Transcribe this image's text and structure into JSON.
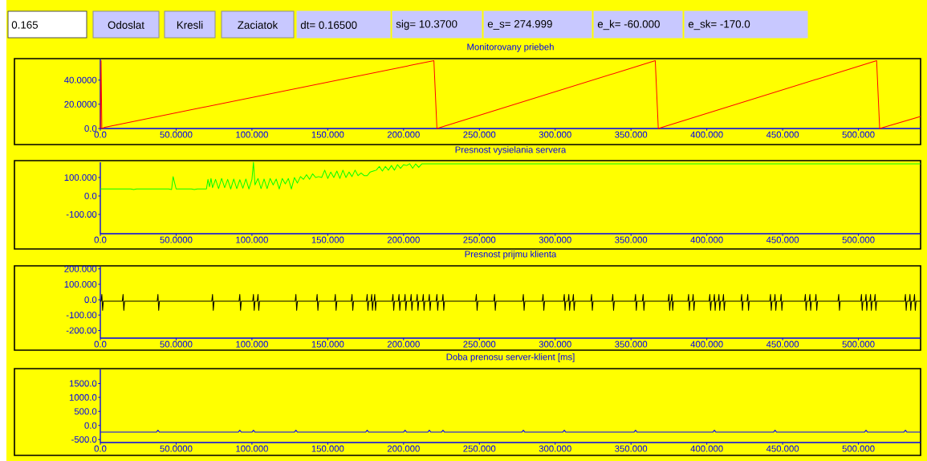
{
  "chart_data": [
    {
      "type": "other",
      "annotations": [
        "0.165",
        "Odoslat",
        "Kresli",
        "Zaciatok",
        "dt= 0.16500",
        "sig= 10.3700",
        "e_s= 274.999",
        "e_k= -60.000",
        "e_sk= -170.0"
      ]
    },
    {
      "type": "line",
      "title": "Monitorovany priebeh",
      "color": "#ff0000",
      "x": [
        0,
        0.5,
        1,
        3,
        220,
        222,
        366,
        368,
        512,
        514,
        541
      ],
      "values": [
        0,
        56,
        0,
        1,
        56,
        0,
        56,
        0,
        56,
        0,
        10
      ],
      "xlim": [
        0,
        541
      ],
      "ylim": [
        0,
        57
      ],
      "xticks": [
        {
          "value": 0,
          "label": "0.0"
        },
        {
          "value": 50,
          "label": "50.0000"
        },
        {
          "value": 100,
          "label": "100.000"
        },
        {
          "value": 150,
          "label": "150.000"
        },
        {
          "value": 200,
          "label": "200.000"
        },
        {
          "value": 250,
          "label": "250.000"
        },
        {
          "value": 300,
          "label": "300.000"
        },
        {
          "value": 350,
          "label": "350.000"
        },
        {
          "value": 400,
          "label": "400.000"
        },
        {
          "value": 450,
          "label": "450.000"
        },
        {
          "value": 500,
          "label": "500.000"
        }
      ],
      "yticks": [
        {
          "value": 0,
          "label": "0.0"
        },
        {
          "value": 20,
          "label": "20.0000"
        },
        {
          "value": 40,
          "label": "40.0000"
        }
      ]
    },
    {
      "type": "line",
      "title": "Presnost vysielania servera",
      "color": "#00ff00",
      "x": [
        0,
        20,
        22,
        24,
        45,
        47,
        48,
        50,
        60,
        62,
        64,
        70,
        71,
        72,
        73,
        74,
        76,
        78,
        80,
        82,
        84,
        86,
        88,
        90,
        92,
        94,
        96,
        98,
        100,
        101,
        102,
        104,
        106,
        108,
        110,
        112,
        114,
        116,
        118,
        120,
        122,
        124,
        126,
        128,
        130,
        132,
        134,
        136,
        138,
        140,
        142,
        144,
        146,
        148,
        150,
        152,
        154,
        156,
        158,
        160,
        162,
        164,
        166,
        168,
        170,
        172,
        174,
        176,
        178,
        180,
        182,
        184,
        186,
        188,
        190,
        192,
        194,
        196,
        198,
        200,
        202,
        204,
        206,
        208,
        210,
        212,
        214,
        541
      ],
      "values": [
        38,
        38,
        35,
        38,
        38,
        35,
        105,
        38,
        38,
        35,
        38,
        38,
        90,
        50,
        95,
        45,
        90,
        40,
        95,
        45,
        90,
        38,
        92,
        40,
        88,
        42,
        92,
        38,
        90,
        183,
        60,
        95,
        40,
        92,
        40,
        95,
        60,
        92,
        38,
        95,
        65,
        95,
        38,
        100,
        70,
        105,
        90,
        115,
        90,
        120,
        100,
        105,
        100,
        140,
        95,
        130,
        100,
        135,
        95,
        140,
        100,
        130,
        105,
        140,
        110,
        125,
        110,
        110,
        130,
        135,
        140,
        160,
        135,
        160,
        140,
        165,
        140,
        170,
        150,
        170,
        165,
        175,
        150,
        174,
        155,
        174,
        174,
        174
      ],
      "xlim": [
        0,
        541
      ],
      "ylim": [
        -205,
        183
      ],
      "xticks": [
        {
          "value": 0,
          "label": "0.0"
        },
        {
          "value": 50,
          "label": "50.0000"
        },
        {
          "value": 100,
          "label": "100.000"
        },
        {
          "value": 150,
          "label": "150.000"
        },
        {
          "value": 200,
          "label": "200.000"
        },
        {
          "value": 250,
          "label": "250.000"
        },
        {
          "value": 300,
          "label": "300.000"
        },
        {
          "value": 350,
          "label": "350.000"
        },
        {
          "value": 400,
          "label": "400.000"
        },
        {
          "value": 450,
          "label": "450.000"
        },
        {
          "value": 500,
          "label": "500.000"
        }
      ],
      "yticks": [
        {
          "value": -100,
          "label": "-100.00"
        },
        {
          "value": 0,
          "label": "0.0"
        },
        {
          "value": 100,
          "label": "100.000"
        }
      ]
    },
    {
      "type": "line",
      "title": "Presnost prijmu klienta",
      "color": "#000000",
      "x": [
        0,
        0.5,
        1,
        1.5,
        2,
        14.5,
        15,
        15.5,
        16,
        37.5,
        38,
        38.5,
        39,
        73.5,
        74,
        74.5,
        75,
        91.5,
        92,
        92.5,
        93,
        100.5,
        101,
        101.5,
        102,
        103.5,
        104,
        104.5,
        105,
        128.5,
        129,
        129.5,
        130,
        142.5,
        143,
        143.5,
        144,
        154.5,
        155,
        155.5,
        156,
        165.5,
        166,
        166.5,
        167,
        175.5,
        176,
        176.5,
        177,
        178.5,
        179,
        179.5,
        180,
        180.5,
        181,
        181.5,
        182,
        192.5,
        193,
        193.5,
        194,
        196.5,
        197,
        197.5,
        198,
        200.5,
        201,
        201.5,
        202,
        204.5,
        205,
        205.5,
        206,
        208.5,
        209,
        209.5,
        210,
        212.5,
        213,
        213.5,
        214,
        216.5,
        217,
        217.5,
        218,
        221.5,
        222,
        222.5,
        223,
        225.5,
        226,
        226.5,
        227,
        247.5,
        248,
        248.5,
        249,
        259.5,
        260,
        260.5,
        261,
        278.5,
        279,
        279.5,
        280,
        291.5,
        292,
        292.5,
        293,
        305.5,
        306,
        306.5,
        307,
        308.5,
        309,
        309.5,
        310,
        311.5,
        312,
        312.5,
        313,
        323.5,
        324,
        324.5,
        325,
        337.5,
        338,
        338.5,
        339,
        352.5,
        353,
        353.5,
        354,
        357.5,
        358,
        358.5,
        359,
        374.5,
        375,
        375.5,
        376,
        376.5,
        377,
        377.5,
        378,
        387.5,
        388,
        388.5,
        389,
        390.5,
        391,
        391.5,
        392,
        401.5,
        402,
        402.5,
        403,
        404.5,
        405,
        405.5,
        406,
        407.5,
        408,
        408.5,
        409,
        410.5,
        411,
        411.5,
        412,
        422.5,
        423,
        423.5,
        424,
        426.5,
        427,
        427.5,
        428,
        441.5,
        442,
        442.5,
        443,
        444.5,
        445,
        445.5,
        446,
        448.5,
        449,
        449.5,
        450,
        464.5,
        465,
        465.5,
        466,
        467.5,
        468,
        468.5,
        469,
        471.5,
        472,
        472.5,
        473,
        486.5,
        487,
        487.5,
        488,
        501.5,
        502,
        502.5,
        503,
        504.5,
        505,
        505.5,
        506,
        507.5,
        508,
        508.5,
        509,
        510.5,
        511,
        511.5,
        512,
        530.5,
        531,
        531.5,
        532,
        533.5,
        534,
        534.5,
        535,
        536.5,
        537,
        537.5,
        538,
        541
      ],
      "values": [
        -10,
        -10,
        35,
        -70,
        -10,
        -10,
        35,
        -70,
        -10,
        -10,
        35,
        -70,
        -10,
        -10,
        35,
        -70,
        -10,
        -10,
        35,
        -70,
        -10,
        -10,
        35,
        -70,
        -10,
        -10,
        35,
        -70,
        -10,
        -10,
        35,
        -70,
        -10,
        -10,
        35,
        -70,
        -10,
        -10,
        35,
        -70,
        -10,
        -10,
        35,
        -70,
        -10,
        -10,
        35,
        -70,
        -10,
        -10,
        35,
        -70,
        -10,
        -10,
        35,
        -70,
        -10,
        -10,
        35,
        -70,
        -10,
        -10,
        35,
        -70,
        -10,
        -10,
        35,
        -70,
        -10,
        -10,
        35,
        -70,
        -10,
        -10,
        35,
        -70,
        -10,
        -10,
        35,
        -70,
        -10,
        -10,
        35,
        -70,
        -10,
        -10,
        35,
        -70,
        -10,
        -10,
        35,
        -70,
        -10,
        -10,
        35,
        -70,
        -10,
        -10,
        35,
        -70,
        -10,
        -10,
        35,
        -70,
        -10,
        -10,
        35,
        -70,
        -10,
        -10,
        35,
        -70,
        -10,
        -10,
        35,
        -70,
        -10,
        -10,
        35,
        -70,
        -10,
        -10,
        35,
        -70,
        -10,
        -10,
        35,
        -70,
        -10,
        -10,
        35,
        -70,
        -10,
        -10,
        35,
        -70,
        -10,
        -10,
        35,
        -70,
        -10,
        -10,
        35,
        -70,
        -10,
        -10,
        35,
        -70,
        -10,
        -10,
        35,
        -70,
        -10,
        -10,
        35,
        -70,
        -10,
        -10,
        35,
        -70,
        -10,
        -10,
        35,
        -70,
        -10,
        -10,
        35,
        -70,
        -10,
        -10,
        35,
        -70,
        -10,
        -10,
        35,
        -70,
        -10,
        -10,
        35,
        -70,
        -10,
        -10,
        35,
        -70,
        -10,
        -10,
        35,
        -70,
        -10,
        -10,
        35,
        -70,
        -10,
        -10,
        35,
        -70,
        -10,
        -10,
        35,
        -70,
        -10,
        -10,
        35,
        -70,
        -10,
        -10,
        35,
        -70,
        -10,
        -10,
        35,
        -70,
        -10,
        -10,
        35,
        -70,
        -10,
        -10,
        35,
        -70,
        -10,
        -10,
        35,
        -70,
        -10,
        -10,
        35,
        -70,
        -10,
        -10,
        35,
        -70,
        -10,
        -10
      ],
      "xlim": [
        0,
        541
      ],
      "ylim": [
        -250,
        215
      ],
      "xticks": [
        {
          "value": 0,
          "label": "0.0"
        },
        {
          "value": 50,
          "label": "50.0000"
        },
        {
          "value": 100,
          "label": "100.000"
        },
        {
          "value": 150,
          "label": "150.000"
        },
        {
          "value": 200,
          "label": "200.000"
        },
        {
          "value": 250,
          "label": "250.000"
        },
        {
          "value": 300,
          "label": "300.000"
        },
        {
          "value": 350,
          "label": "350.000"
        },
        {
          "value": 400,
          "label": "400.000"
        },
        {
          "value": 450,
          "label": "450.000"
        },
        {
          "value": 500,
          "label": "500.000"
        }
      ],
      "yticks": [
        {
          "value": -200,
          "label": "-200.00"
        },
        {
          "value": -100,
          "label": "-100.00"
        },
        {
          "value": 0,
          "label": "0.0"
        },
        {
          "value": 100,
          "label": "100.000"
        },
        {
          "value": 200,
          "label": "200.000"
        }
      ]
    },
    {
      "type": "line",
      "title": "Doba prenosu server-klient [ms]",
      "color": "#0000ff",
      "x": [
        0,
        37,
        38,
        39,
        91,
        92,
        93,
        100,
        101,
        102,
        128,
        129,
        130,
        175,
        176,
        177,
        200,
        201,
        202,
        216,
        217,
        218,
        225,
        226,
        227,
        278,
        279,
        280,
        305,
        306,
        307,
        352,
        353,
        354,
        404,
        405,
        406,
        444,
        445,
        446,
        504,
        505,
        506,
        530,
        531,
        532,
        541
      ],
      "values": [
        -240,
        -240,
        -170,
        -240,
        -240,
        -170,
        -240,
        -240,
        -170,
        -240,
        -240,
        -170,
        -240,
        -240,
        -170,
        -240,
        -240,
        -170,
        -240,
        -240,
        -170,
        -240,
        -240,
        -170,
        -240,
        -240,
        -170,
        -240,
        -240,
        -170,
        -240,
        -240,
        -170,
        -240,
        -240,
        -170,
        -240,
        -240,
        -170,
        -240,
        -240,
        -170,
        -240,
        -240,
        -170,
        -240,
        -240
      ],
      "xlim": [
        0,
        541
      ],
      "ylim": [
        -610,
        2000
      ],
      "xticks": [
        {
          "value": 0,
          "label": "0.0"
        },
        {
          "value": 50,
          "label": "50.0000"
        },
        {
          "value": 100,
          "label": "100.000"
        },
        {
          "value": 150,
          "label": "150.000"
        },
        {
          "value": 200,
          "label": "200.000"
        },
        {
          "value": 250,
          "label": "250.000"
        },
        {
          "value": 300,
          "label": "300.000"
        },
        {
          "value": 350,
          "label": "350.000"
        },
        {
          "value": 400,
          "label": "400.000"
        },
        {
          "value": 450,
          "label": "450.000"
        },
        {
          "value": 500,
          "label": "500.000"
        }
      ],
      "yticks": [
        {
          "value": -500,
          "label": "-500.0"
        },
        {
          "value": 0,
          "label": "0.0"
        },
        {
          "value": 500,
          "label": "500.0"
        },
        {
          "value": 1000,
          "label": "1000.0"
        },
        {
          "value": 1500,
          "label": "1500.0"
        }
      ]
    }
  ]
}
